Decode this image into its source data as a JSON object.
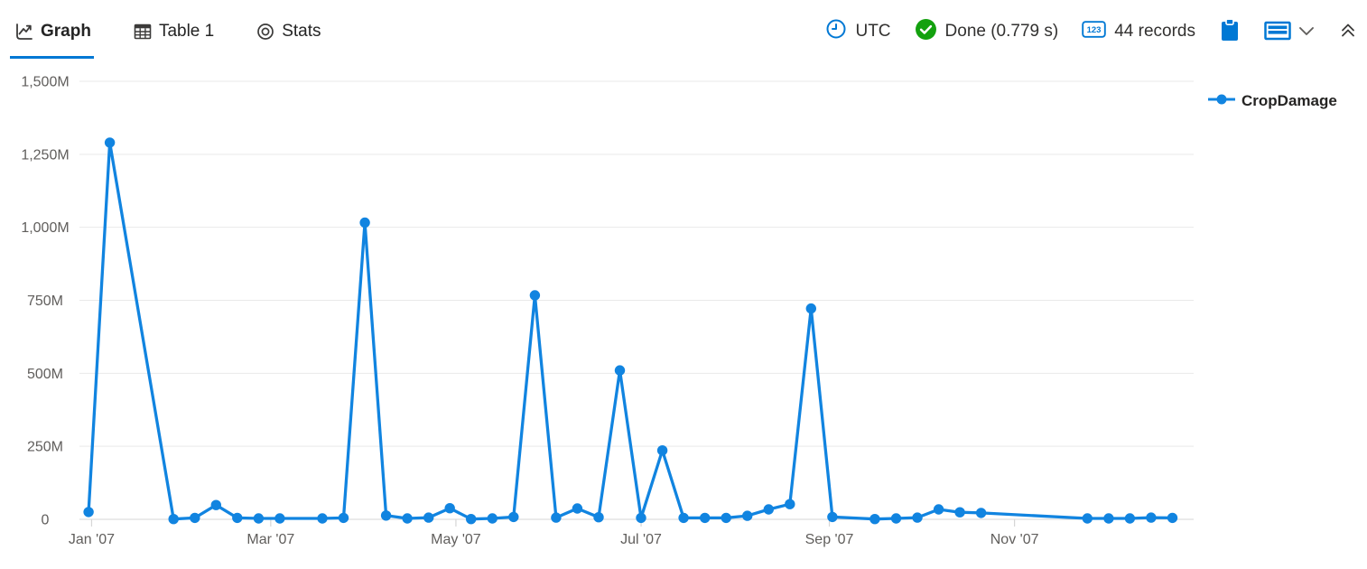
{
  "tabs": [
    {
      "label": "Graph",
      "active": true
    },
    {
      "label": "Table 1",
      "active": false
    },
    {
      "label": "Stats",
      "active": false
    }
  ],
  "statusbar": {
    "timezone": "UTC",
    "query_status": "Done (0.779 s)",
    "record_count": "44 records",
    "records_badge": "123"
  },
  "colors": {
    "accent_blue": "#0078d4",
    "series_blue": "#1184e0",
    "success_green": "#13a10e",
    "grid_line": "#e9e9e9",
    "axis_line": "#d6d6d6",
    "axis_text": "#605e5c"
  },
  "chart_data": {
    "type": "line",
    "title": "",
    "xlabel": "",
    "ylabel": "",
    "grid": true,
    "legend_position": "right",
    "x_axis": {
      "type": "datetime",
      "range": [
        "2006-12-28",
        "2007-12-30"
      ],
      "ticks": [
        {
          "label": "Jan '07",
          "date": "2007-01-01"
        },
        {
          "label": "Mar '07",
          "date": "2007-03-01"
        },
        {
          "label": "May '07",
          "date": "2007-05-01"
        },
        {
          "label": "Jul '07",
          "date": "2007-07-01"
        },
        {
          "label": "Sep '07",
          "date": "2007-09-01"
        },
        {
          "label": "Nov '07",
          "date": "2007-11-01"
        }
      ]
    },
    "y_axis": {
      "unit": "M",
      "range_millions": [
        0,
        1500
      ],
      "ticks": [
        {
          "value": 0,
          "label": "0"
        },
        {
          "value": 250,
          "label": "250M"
        },
        {
          "value": 500,
          "label": "500M"
        },
        {
          "value": 750,
          "label": "750M"
        },
        {
          "value": 1000,
          "label": "1,000M"
        },
        {
          "value": 1250,
          "label": "1,250M"
        },
        {
          "value": 1500,
          "label": "1,500M"
        }
      ]
    },
    "point_format": [
      "date",
      "value_millions"
    ],
    "series": [
      {
        "name": "CropDamage",
        "color": "#1184e0",
        "marker": "circle",
        "points": [
          [
            "2006-12-31",
            25
          ],
          [
            "2007-01-07",
            1290
          ],
          [
            "2007-01-28",
            1
          ],
          [
            "2007-02-04",
            5
          ],
          [
            "2007-02-11",
            49
          ],
          [
            "2007-02-18",
            5
          ],
          [
            "2007-02-25",
            3
          ],
          [
            "2007-03-04",
            3
          ],
          [
            "2007-03-18",
            3
          ],
          [
            "2007-03-25",
            5
          ],
          [
            "2007-04-01",
            1016
          ],
          [
            "2007-04-08",
            13
          ],
          [
            "2007-04-15",
            3
          ],
          [
            "2007-04-22",
            6
          ],
          [
            "2007-04-29",
            38
          ],
          [
            "2007-05-06",
            1
          ],
          [
            "2007-05-13",
            3
          ],
          [
            "2007-05-20",
            8
          ],
          [
            "2007-05-27",
            767
          ],
          [
            "2007-06-03",
            6
          ],
          [
            "2007-06-10",
            37
          ],
          [
            "2007-06-17",
            7
          ],
          [
            "2007-06-24",
            510
          ],
          [
            "2007-07-01",
            5
          ],
          [
            "2007-07-08",
            236
          ],
          [
            "2007-07-15",
            5
          ],
          [
            "2007-07-22",
            5
          ],
          [
            "2007-07-29",
            5
          ],
          [
            "2007-08-05",
            12
          ],
          [
            "2007-08-12",
            34
          ],
          [
            "2007-08-19",
            52
          ],
          [
            "2007-08-26",
            722
          ],
          [
            "2007-09-02",
            8
          ],
          [
            "2007-09-16",
            1
          ],
          [
            "2007-09-23",
            3
          ],
          [
            "2007-09-30",
            6
          ],
          [
            "2007-10-07",
            34
          ],
          [
            "2007-10-14",
            24
          ],
          [
            "2007-10-21",
            22
          ],
          [
            "2007-11-25",
            3
          ],
          [
            "2007-12-02",
            3
          ],
          [
            "2007-12-09",
            3
          ],
          [
            "2007-12-16",
            6
          ],
          [
            "2007-12-23",
            5
          ]
        ]
      }
    ]
  }
}
